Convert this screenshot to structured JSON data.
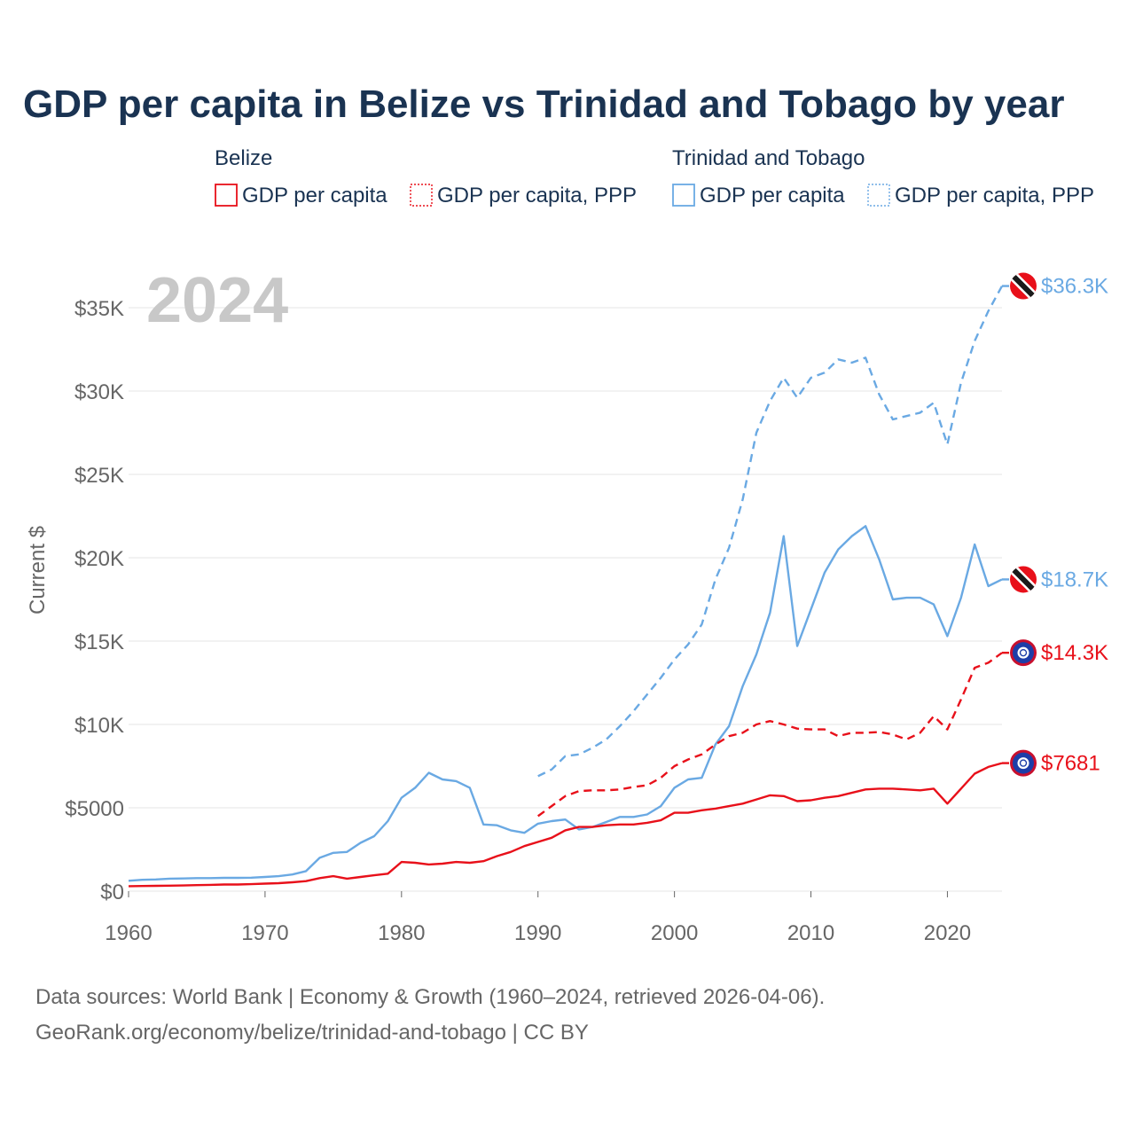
{
  "chart_data": {
    "type": "line",
    "title": "GDP per capita in Belize vs Trinidad and Tobago by year",
    "ylabel": "Current $",
    "xlabel": "",
    "year_label": "2024",
    "xlim": [
      1960,
      2024
    ],
    "ylim": [
      0,
      37500
    ],
    "x_ticks": [
      1960,
      1970,
      1980,
      1990,
      2000,
      2010,
      2020
    ],
    "x_tick_labels": [
      "1960",
      "1970",
      "1980",
      "1990",
      "2000",
      "2010",
      "2020"
    ],
    "y_ticks": [
      0,
      5000,
      10000,
      15000,
      20000,
      25000,
      30000,
      35000
    ],
    "y_tick_labels": [
      "$0",
      "$5000",
      "$10K",
      "$15K",
      "$20K",
      "$25K",
      "$30K",
      "$35K"
    ],
    "grid": true,
    "legend": {
      "groups": [
        {
          "name": "Belize",
          "entries": [
            {
              "label": "GDP per capita",
              "series": "bz_gdp"
            },
            {
              "label": "GDP per capita, PPP",
              "series": "bz_ppp"
            }
          ]
        },
        {
          "name": "Trinidad and Tobago",
          "entries": [
            {
              "label": "GDP per capita",
              "series": "tt_gdp"
            },
            {
              "label": "GDP per capita, PPP",
              "series": "tt_ppp"
            }
          ]
        }
      ]
    },
    "colors": {
      "belize": "#e8101a",
      "trinidad": "#6aa9e3",
      "axis": "#666666",
      "grid": "#e6e6e6",
      "title": "#1a3352",
      "year": "#c8c8c8"
    },
    "series": [
      {
        "id": "tt_ppp",
        "name": "Trinidad and Tobago GDP per capita, PPP",
        "country": "trinidad",
        "style": "dashed",
        "end_label": "$36.3K",
        "flag": "trinidad-flag-icon",
        "x": [
          1990,
          1991,
          1992,
          1993,
          1994,
          1995,
          1996,
          1997,
          1998,
          1999,
          2000,
          2001,
          2002,
          2003,
          2004,
          2005,
          2006,
          2007,
          2008,
          2009,
          2010,
          2011,
          2012,
          2013,
          2014,
          2015,
          2016,
          2017,
          2018,
          2019,
          2020,
          2021,
          2022,
          2023,
          2024
        ],
        "values": [
          6900,
          7300,
          8100,
          8200,
          8600,
          9100,
          9900,
          10800,
          11800,
          12800,
          13900,
          14800,
          16000,
          18700,
          20600,
          23500,
          27500,
          29400,
          30800,
          29600,
          30800,
          31100,
          31900,
          31700,
          32000,
          29800,
          28300,
          28500,
          28700,
          29300,
          26800,
          30500,
          33000,
          34800,
          36300
        ]
      },
      {
        "id": "tt_gdp",
        "name": "Trinidad and Tobago GDP per capita",
        "country": "trinidad",
        "style": "solid",
        "end_label": "$18.7K",
        "flag": "trinidad-flag-icon",
        "x": [
          1960,
          1961,
          1962,
          1963,
          1964,
          1965,
          1966,
          1967,
          1968,
          1969,
          1970,
          1971,
          1972,
          1973,
          1974,
          1975,
          1976,
          1977,
          1978,
          1979,
          1980,
          1981,
          1982,
          1983,
          1984,
          1985,
          1986,
          1987,
          1988,
          1989,
          1990,
          1991,
          1992,
          1993,
          1994,
          1995,
          1996,
          1997,
          1998,
          1999,
          2000,
          2001,
          2002,
          2003,
          2004,
          2005,
          2006,
          2007,
          2008,
          2009,
          2010,
          2011,
          2012,
          2013,
          2014,
          2015,
          2016,
          2017,
          2018,
          2019,
          2020,
          2021,
          2022,
          2023,
          2024
        ],
        "values": [
          620,
          680,
          700,
          750,
          760,
          780,
          780,
          800,
          800,
          810,
          850,
          900,
          1000,
          1200,
          2000,
          2300,
          2350,
          2900,
          3300,
          4200,
          5600,
          6200,
          7100,
          6700,
          6600,
          6200,
          4000,
          3950,
          3650,
          3500,
          4050,
          4200,
          4300,
          3700,
          3850,
          4150,
          4450,
          4450,
          4600,
          5100,
          6200,
          6700,
          6800,
          8800,
          9900,
          12300,
          14200,
          16700,
          21300,
          14700,
          16900,
          19100,
          20500,
          21300,
          21900,
          19900,
          17500,
          17600,
          17600,
          17200,
          15300,
          17600,
          20800,
          18300,
          18700
        ]
      },
      {
        "id": "bz_ppp",
        "name": "Belize GDP per capita, PPP",
        "country": "belize",
        "style": "dashed",
        "end_label": "$14.3K",
        "flag": "belize-flag-icon",
        "x": [
          1990,
          1991,
          1992,
          1993,
          1994,
          1995,
          1996,
          1997,
          1998,
          1999,
          2000,
          2001,
          2002,
          2003,
          2004,
          2005,
          2006,
          2007,
          2008,
          2009,
          2010,
          2011,
          2012,
          2013,
          2014,
          2015,
          2016,
          2017,
          2018,
          2019,
          2020,
          2021,
          2022,
          2023,
          2024
        ],
        "values": [
          4500,
          5100,
          5700,
          6000,
          6050,
          6050,
          6100,
          6250,
          6350,
          6800,
          7500,
          7900,
          8200,
          8800,
          9300,
          9500,
          10000,
          10200,
          10000,
          9750,
          9700,
          9700,
          9300,
          9500,
          9500,
          9550,
          9400,
          9100,
          9500,
          10500,
          9700,
          11500,
          13400,
          13700,
          14300
        ]
      },
      {
        "id": "bz_gdp",
        "name": "Belize GDP per capita",
        "country": "belize",
        "style": "solid",
        "end_label": "$7681",
        "flag": "belize-flag-icon",
        "x": [
          1960,
          1961,
          1962,
          1963,
          1964,
          1965,
          1966,
          1967,
          1968,
          1969,
          1970,
          1971,
          1972,
          1973,
          1974,
          1975,
          1976,
          1977,
          1978,
          1979,
          1980,
          1981,
          1982,
          1983,
          1984,
          1985,
          1986,
          1987,
          1988,
          1989,
          1990,
          1991,
          1992,
          1993,
          1994,
          1995,
          1996,
          1997,
          1998,
          1999,
          2000,
          2001,
          2002,
          2003,
          2004,
          2005,
          2006,
          2007,
          2008,
          2009,
          2010,
          2011,
          2012,
          2013,
          2014,
          2015,
          2016,
          2017,
          2018,
          2019,
          2020,
          2021,
          2022,
          2023,
          2024
        ],
        "values": [
          300,
          310,
          320,
          330,
          340,
          360,
          380,
          400,
          400,
          420,
          450,
          480,
          530,
          600,
          780,
          900,
          750,
          850,
          950,
          1050,
          1750,
          1700,
          1600,
          1650,
          1750,
          1700,
          1800,
          2100,
          2350,
          2700,
          2950,
          3200,
          3650,
          3850,
          3850,
          3950,
          4000,
          4000,
          4100,
          4250,
          4700,
          4700,
          4850,
          4950,
          5100,
          5250,
          5500,
          5750,
          5700,
          5400,
          5450,
          5600,
          5700,
          5900,
          6100,
          6150,
          6150,
          6100,
          6050,
          6150,
          5250,
          6150,
          7050,
          7450,
          7681
        ]
      }
    ],
    "source_line1": "Data sources: World Bank | Economy & Growth (1960–2024, retrieved 2026-04-06).",
    "source_line2": "GeoRank.org/economy/belize/trinidad-and-tobago | CC BY"
  }
}
